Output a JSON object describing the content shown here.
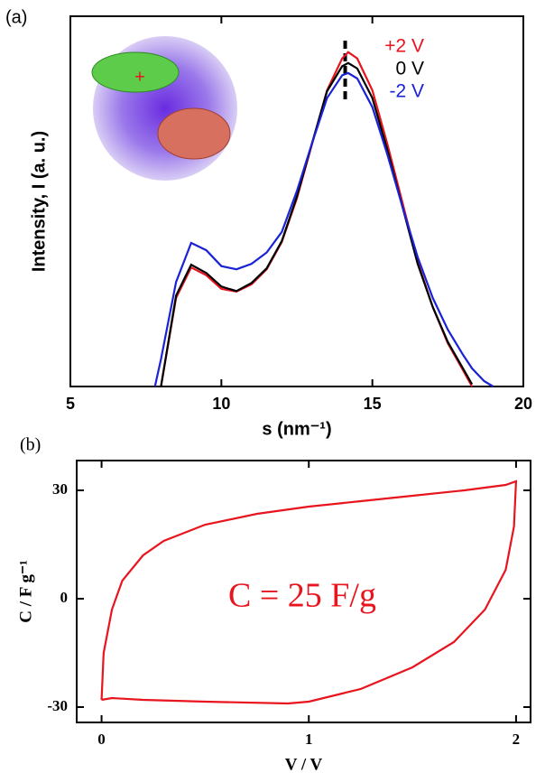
{
  "chart_data": [
    {
      "type": "line",
      "panel_label": "(a)",
      "xlabel": "s (nm⁻¹)",
      "ylabel": "Intensity, I (a. u.)",
      "xlim": [
        5,
        20
      ],
      "xticks": [
        5,
        10,
        15,
        20
      ],
      "ylim": [
        0,
        8.15
      ],
      "peak_line_x": 14.1,
      "x": [
        7.8,
        8,
        8.5,
        9,
        9.5,
        10,
        10.5,
        11,
        11.5,
        12,
        12.5,
        13,
        13.5,
        14,
        14.2,
        14.5,
        15,
        15.5,
        16,
        16.5,
        17,
        17.5,
        18,
        18.3,
        18.7,
        19
      ],
      "series": [
        {
          "name": "+2 V",
          "color": "#e8141e",
          "values": [
            null,
            0,
            1.95,
            2.62,
            2.45,
            2.15,
            2.09,
            2.25,
            2.58,
            3.18,
            4.14,
            5.33,
            6.52,
            7.22,
            7.36,
            7.22,
            6.52,
            5.33,
            4.04,
            2.74,
            1.75,
            0.95,
            0.36,
            0,
            null,
            null
          ]
        },
        {
          "name": "0 V",
          "color": "#000000",
          "values": [
            null,
            0,
            2.0,
            2.68,
            2.5,
            2.2,
            2.1,
            2.28,
            2.6,
            3.2,
            4.18,
            5.35,
            6.5,
            7.05,
            7.12,
            7.0,
            6.35,
            5.2,
            3.95,
            2.7,
            1.75,
            0.98,
            0.4,
            0.05,
            null,
            null
          ]
        },
        {
          "name": "-2 V",
          "color": "#1a22d6",
          "values": [
            0,
            0.6,
            2.3,
            3.16,
            3.0,
            2.65,
            2.58,
            2.7,
            2.95,
            3.4,
            4.3,
            5.35,
            6.35,
            6.85,
            6.9,
            6.78,
            6.15,
            5.1,
            3.95,
            2.85,
            1.95,
            1.25,
            0.7,
            0.4,
            0.12,
            0
          ]
        }
      ]
    },
    {
      "type": "line",
      "panel_label": "(b)",
      "xlabel": "V / V",
      "ylabel": "C / F g⁻¹",
      "annotation": "C = 25 F/g",
      "xlim": [
        -0.12,
        2.07
      ],
      "xticks": [
        0,
        1,
        2
      ],
      "ylim": [
        -34.25,
        38.25
      ],
      "yticks": [
        -30,
        0,
        30
      ],
      "x": [
        0,
        0.01,
        0.05,
        0.1,
        0.2,
        0.3,
        0.5,
        0.75,
        1,
        1.25,
        1.5,
        1.75,
        1.95,
        2,
        1.99,
        1.95,
        1.85,
        1.7,
        1.5,
        1.25,
        1,
        0.9,
        0.5,
        0.2,
        0.05,
        0
      ],
      "series": [
        {
          "color": "#e8141e",
          "values": [
            -28,
            -15,
            -3,
            5,
            12,
            16,
            20.5,
            23.5,
            25.5,
            27,
            28.5,
            30,
            31.5,
            32.5,
            20,
            8,
            -3,
            -12,
            -19,
            -25,
            -28.5,
            -29,
            -28.5,
            -28,
            -27.5,
            -28
          ]
        }
      ]
    }
  ]
}
